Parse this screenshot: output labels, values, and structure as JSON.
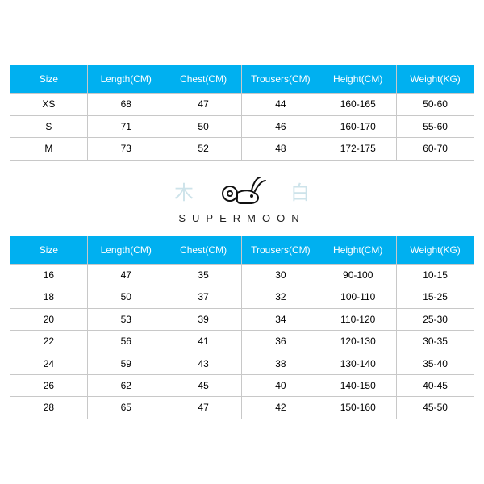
{
  "header_bg": "#00b0f0",
  "header_fg": "#ffffff",
  "border_color": "#c8c8c8",
  "font_size_cell": 12,
  "columns": [
    "Size",
    "Length(CM)",
    "Chest(CM)",
    "Trousers(CM)",
    "Height(CM)",
    "Weight(KG)"
  ],
  "table1": {
    "rows": [
      [
        "XS",
        "68",
        "47",
        "44",
        "160-165",
        "50-60"
      ],
      [
        "S",
        "71",
        "50",
        "46",
        "160-170",
        "55-60"
      ],
      [
        "M",
        "73",
        "52",
        "48",
        "172-175",
        "60-70"
      ]
    ]
  },
  "logo": {
    "left_char": "木",
    "right_char": "白",
    "brand": "SUPERMOON",
    "char_color": "#cde3ea",
    "brand_color": "#222222"
  },
  "table2": {
    "rows": [
      [
        "16",
        "47",
        "35",
        "30",
        "90-100",
        "10-15"
      ],
      [
        "18",
        "50",
        "37",
        "32",
        "100-110",
        "15-25"
      ],
      [
        "20",
        "53",
        "39",
        "34",
        "110-120",
        "25-30"
      ],
      [
        "22",
        "56",
        "41",
        "36",
        "120-130",
        "30-35"
      ],
      [
        "24",
        "59",
        "43",
        "38",
        "130-140",
        "35-40"
      ],
      [
        "26",
        "62",
        "45",
        "40",
        "140-150",
        "40-45"
      ],
      [
        "28",
        "65",
        "47",
        "42",
        "150-160",
        "45-50"
      ]
    ]
  }
}
